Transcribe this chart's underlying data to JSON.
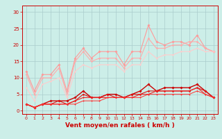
{
  "x": [
    0,
    1,
    2,
    3,
    4,
    5,
    6,
    7,
    8,
    9,
    10,
    11,
    12,
    13,
    14,
    15,
    16,
    17,
    18,
    19,
    20,
    21,
    22,
    23
  ],
  "bg_color": "#cceee8",
  "grid_color": "#aacccc",
  "xlabel": "Vent moyen/en rafales ( km/h )",
  "xlabel_color": "#cc0000",
  "tick_color": "#cc0000",
  "ylim": [
    -1,
    32
  ],
  "xlim": [
    -0.5,
    23.5
  ],
  "yticks": [
    0,
    5,
    10,
    15,
    20,
    25,
    30
  ],
  "lines": [
    {
      "y": [
        12,
        6,
        11,
        11,
        14,
        6,
        16,
        19,
        16,
        18,
        18,
        18,
        14,
        18,
        18,
        26,
        21,
        20,
        21,
        21,
        20,
        23,
        19,
        18
      ],
      "color": "#ff9999",
      "lw": 0.8,
      "marker": "D",
      "ms": 1.8
    },
    {
      "y": [
        11,
        5,
        10,
        10,
        13,
        5,
        15,
        18,
        15,
        16,
        16,
        16,
        13,
        16,
        16,
        22,
        19,
        19,
        20,
        20,
        21,
        21,
        19,
        18
      ],
      "color": "#ffaaaa",
      "lw": 0.8,
      "marker": "D",
      "ms": 1.5
    },
    {
      "y": [
        7,
        3,
        8,
        9,
        10,
        4,
        12,
        14,
        13,
        14,
        14,
        14,
        12,
        14,
        14,
        18,
        16,
        17,
        17,
        18,
        18,
        19,
        18,
        18
      ],
      "color": "#ffcccc",
      "lw": 0.8,
      "marker": "D",
      "ms": 1.2
    },
    {
      "y": [
        2,
        1,
        2,
        3,
        3,
        3,
        4,
        6,
        4,
        4,
        5,
        5,
        4,
        5,
        6,
        8,
        6,
        7,
        7,
        7,
        7,
        8,
        6,
        4
      ],
      "color": "#cc0000",
      "lw": 1.0,
      "marker": "D",
      "ms": 1.8
    },
    {
      "y": [
        2,
        1,
        2,
        2,
        3,
        2,
        3,
        5,
        4,
        4,
        5,
        4,
        4,
        5,
        5,
        6,
        6,
        6,
        6,
        6,
        6,
        7,
        6,
        4
      ],
      "color": "#dd1111",
      "lw": 0.8,
      "marker": "D",
      "ms": 1.5
    },
    {
      "y": [
        2,
        1,
        2,
        2,
        2,
        2,
        3,
        4,
        4,
        4,
        4,
        4,
        4,
        4,
        5,
        5,
        6,
        6,
        6,
        6,
        6,
        7,
        5,
        4
      ],
      "color": "#ee2222",
      "lw": 0.8,
      "marker": "D",
      "ms": 1.2
    },
    {
      "y": [
        2,
        1,
        2,
        2,
        2,
        2,
        2,
        3,
        3,
        3,
        4,
        4,
        4,
        4,
        4,
        5,
        5,
        5,
        5,
        5,
        5,
        6,
        5,
        4
      ],
      "color": "#ff3333",
      "lw": 0.7,
      "marker": "D",
      "ms": 1.0
    }
  ]
}
